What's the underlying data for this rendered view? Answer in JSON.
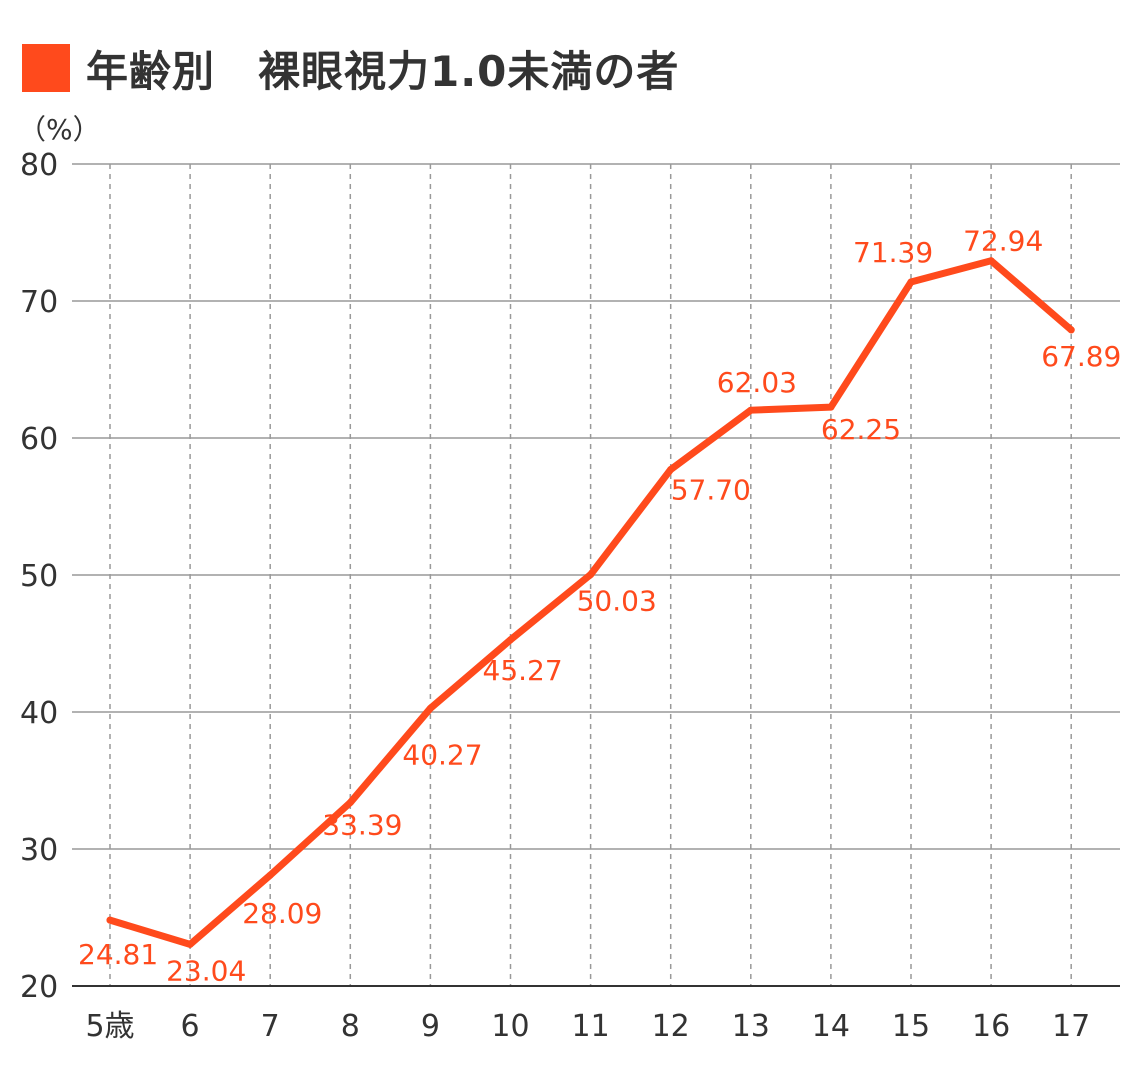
{
  "title": "年齢別　裸眼視力1.0未満の者",
  "unit_label": "（%）",
  "colors": {
    "accent": "#ff4a1c",
    "grid": "#999999",
    "text": "#333333"
  },
  "chart_data": {
    "type": "line",
    "title": "年齢別　裸眼視力1.0未満の者",
    "xlabel": "",
    "ylabel": "（%）",
    "categories": [
      "5歳",
      "6",
      "7",
      "8",
      "9",
      "10",
      "11",
      "12",
      "13",
      "14",
      "15",
      "16",
      "17"
    ],
    "series": [
      {
        "values": [
          24.81,
          23.04,
          28.09,
          33.39,
          40.27,
          45.27,
          50.03,
          57.7,
          62.03,
          62.25,
          71.39,
          72.94,
          67.89
        ]
      }
    ],
    "ylim": [
      20,
      80
    ],
    "yticks": [
      20,
      30,
      40,
      50,
      60,
      70,
      80
    ],
    "grid": "horizontal solid, vertical dashed",
    "data_labels": [
      "24.81",
      "23.04",
      "28.09",
      "33.39",
      "40.27",
      "45.27",
      "50.03",
      "57.70",
      "62.03",
      "62.25",
      "71.39",
      "72.94",
      "67.89"
    ]
  }
}
